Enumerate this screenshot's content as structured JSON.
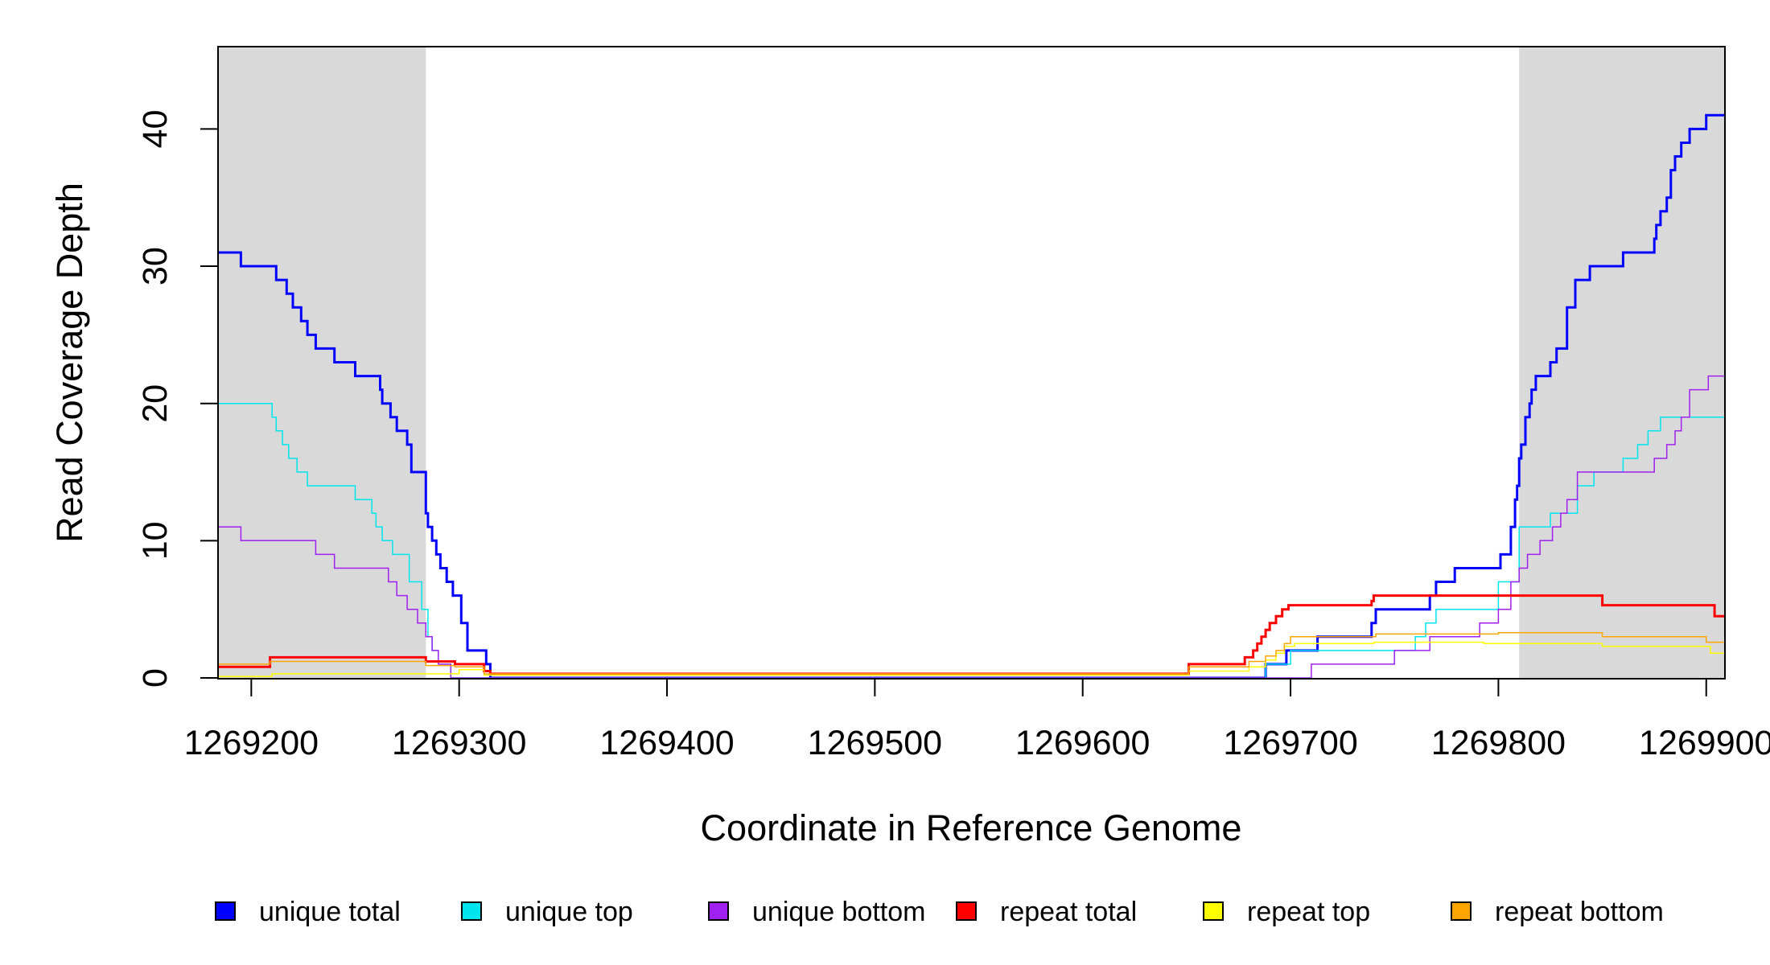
{
  "chart_data": {
    "type": "line",
    "title": "",
    "xlabel": "Coordinate in Reference Genome",
    "ylabel": "Read Coverage Depth",
    "xlim": [
      1269184,
      1269909
    ],
    "ylim": [
      0,
      46
    ],
    "grid": false,
    "legend_position": "bottom",
    "x_ticks": [
      1269200,
      1269300,
      1269400,
      1269500,
      1269600,
      1269700,
      1269800,
      1269900
    ],
    "x_tick_labels": [
      "1269200",
      "1269300",
      "1269400",
      "1269500",
      "1269600",
      "1269700",
      "1269800",
      "1269900"
    ],
    "y_ticks": [
      0,
      10,
      20,
      30,
      40
    ],
    "y_tick_labels": [
      "0",
      "10",
      "20",
      "30",
      "40"
    ],
    "shaded_regions": [
      {
        "x0": 1269184,
        "x1": 1269284,
        "color": "#d9d9d9"
      },
      {
        "x0": 1269810,
        "x1": 1269909,
        "color": "#d9d9d9"
      }
    ],
    "series": [
      {
        "name": "unique total",
        "color": "#0000ff",
        "width": 3,
        "x": [
          1269184,
          1269195,
          1269210,
          1269212,
          1269217,
          1269220,
          1269224,
          1269227,
          1269231,
          1269240,
          1269250,
          1269262,
          1269263,
          1269267,
          1269270,
          1269275,
          1269277,
          1269284,
          1269285,
          1269287,
          1269289,
          1269291,
          1269294,
          1269297,
          1269301,
          1269304,
          1269313,
          1269315,
          1269680,
          1269688,
          1269693,
          1269698,
          1269702,
          1269713,
          1269735,
          1269739,
          1269741,
          1269764,
          1269767,
          1269770,
          1269779,
          1269801,
          1269806,
          1269808,
          1269809,
          1269810,
          1269811,
          1269813,
          1269815,
          1269816,
          1269818,
          1269825,
          1269828,
          1269833,
          1269837,
          1269844,
          1269852,
          1269860,
          1269875,
          1269876,
          1269878,
          1269881,
          1269883,
          1269885,
          1269888,
          1269892,
          1269896,
          1269897,
          1269899,
          1269900,
          1269908,
          1269909
        ],
        "y": [
          31,
          30,
          30,
          29,
          28,
          27,
          26,
          25,
          24,
          23,
          22,
          21,
          20,
          19,
          18,
          17,
          15,
          12,
          11,
          10,
          9,
          8,
          7,
          6,
          4,
          2,
          1,
          0,
          0,
          1,
          1,
          2,
          2,
          3,
          3,
          4,
          5,
          5,
          6,
          7,
          8,
          9,
          11,
          13,
          14,
          16,
          17,
          19,
          20,
          21,
          22,
          23,
          24,
          27,
          29,
          30,
          30,
          31,
          32,
          33,
          34,
          35,
          37,
          38,
          39,
          40,
          40,
          40,
          40,
          41,
          41,
          41
        ]
      },
      {
        "name": "unique top",
        "color": "#00e5ee",
        "width": 1.5,
        "x": [
          1269184,
          1269210,
          1269212,
          1269215,
          1269218,
          1269222,
          1269227,
          1269250,
          1269258,
          1269260,
          1269263,
          1269268,
          1269276,
          1269282,
          1269285,
          1269287,
          1269290,
          1269296,
          1269300,
          1269303,
          1269680,
          1269688,
          1269700,
          1269735,
          1269748,
          1269758,
          1269760,
          1269765,
          1269770,
          1269780,
          1269800,
          1269810,
          1269825,
          1269838,
          1269846,
          1269860,
          1269867,
          1269872,
          1269878,
          1269885,
          1269909
        ],
        "y": [
          20,
          19,
          18,
          17,
          16,
          15,
          14,
          13,
          12,
          11,
          10,
          9,
          7,
          5,
          3,
          2,
          1,
          0,
          0,
          0,
          0,
          1,
          2,
          2,
          2,
          2,
          3,
          4,
          5,
          5,
          7,
          11,
          12,
          14,
          15,
          16,
          17,
          18,
          19,
          19,
          19
        ]
      },
      {
        "name": "unique bottom",
        "color": "#a020f0",
        "width": 1.5,
        "x": [
          1269184,
          1269195,
          1269214,
          1269231,
          1269240,
          1269260,
          1269266,
          1269270,
          1269275,
          1269280,
          1269284,
          1269287,
          1269290,
          1269296,
          1269302,
          1269710,
          1269732,
          1269735,
          1269750,
          1269760,
          1269767,
          1269780,
          1269791,
          1269800,
          1269806,
          1269810,
          1269814,
          1269820,
          1269826,
          1269830,
          1269833,
          1269838,
          1269845,
          1269870,
          1269875,
          1269878,
          1269881,
          1269885,
          1269888,
          1269892,
          1269901,
          1269909
        ],
        "y": [
          11,
          10,
          10,
          9,
          8,
          8,
          7,
          6,
          5,
          4,
          3,
          2,
          1,
          0,
          0,
          1,
          1,
          1,
          2,
          2,
          3,
          3,
          4,
          5,
          7,
          8,
          9,
          10,
          11,
          12,
          13,
          15,
          15,
          15,
          16,
          16,
          17,
          18,
          19,
          21,
          22,
          22
        ]
      },
      {
        "name": "repeat total",
        "color": "#ff0000",
        "width": 3,
        "x": [
          1269184,
          1269209,
          1269270,
          1269284,
          1269298,
          1269312,
          1269315,
          1269650,
          1269651,
          1269678,
          1269682,
          1269684,
          1269686,
          1269688,
          1269690,
          1269693,
          1269696,
          1269699,
          1269703,
          1269739,
          1269740,
          1269793,
          1269850,
          1269904,
          1269909
        ],
        "y": [
          0.8,
          1.5,
          1.5,
          1.2,
          1.0,
          0.5,
          0.3,
          0.3,
          1.0,
          1.5,
          2.0,
          2.5,
          3.0,
          3.5,
          4.0,
          4.5,
          5.0,
          5.3,
          5.3,
          5.6,
          6.0,
          6.0,
          5.3,
          4.5,
          4.5
        ]
      },
      {
        "name": "repeat top",
        "color": "#ffff00",
        "width": 1.5,
        "x": [
          1269184,
          1269210,
          1269285,
          1269300,
          1269312,
          1269650,
          1269651,
          1269680,
          1269688,
          1269693,
          1269697,
          1269702,
          1269740,
          1269793,
          1269850,
          1269902,
          1269909
        ],
        "y": [
          0.1,
          0.3,
          0.3,
          0.6,
          0.2,
          0.2,
          0.5,
          0.8,
          1.3,
          1.8,
          2.3,
          2.5,
          2.6,
          2.5,
          2.3,
          1.8,
          1.8
        ]
      },
      {
        "name": "repeat bottom",
        "color": "#ffa500",
        "width": 1.5,
        "x": [
          1269184,
          1269209,
          1269270,
          1269284,
          1269298,
          1269312,
          1269650,
          1269651,
          1269680,
          1269688,
          1269693,
          1269697,
          1269700,
          1269741,
          1269800,
          1269850,
          1269900,
          1269909
        ],
        "y": [
          1.0,
          1.2,
          1.2,
          0.9,
          0.8,
          0.3,
          0.3,
          0.8,
          1.2,
          1.6,
          2.0,
          2.5,
          3.0,
          3.2,
          3.3,
          3.0,
          2.6,
          2.6
        ]
      }
    ],
    "legend": [
      {
        "label": "unique total",
        "color": "#0000ff"
      },
      {
        "label": "unique top",
        "color": "#00e5ee"
      },
      {
        "label": "unique bottom",
        "color": "#a020f0"
      },
      {
        "label": "repeat total",
        "color": "#ff0000"
      },
      {
        "label": "repeat top",
        "color": "#ffff00"
      },
      {
        "label": "repeat bottom",
        "color": "#ffa500"
      }
    ]
  }
}
